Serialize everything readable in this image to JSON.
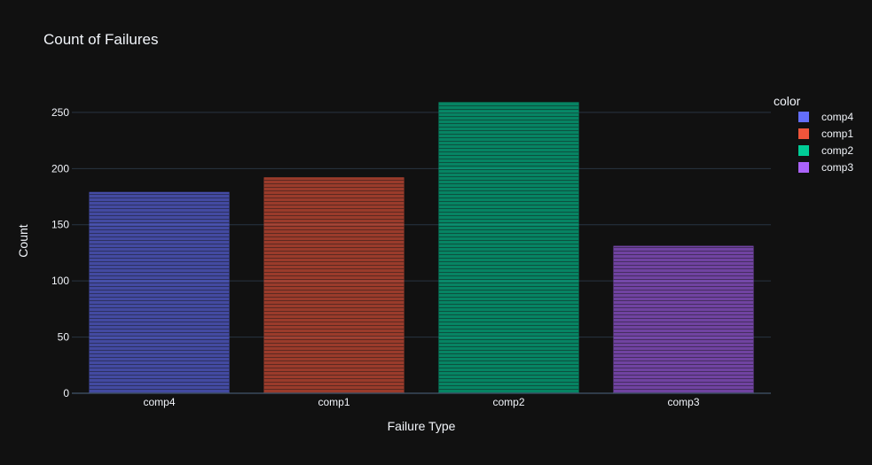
{
  "chart_data": {
    "type": "bar",
    "title": "Count of Failures",
    "xlabel": "Failure Type",
    "ylabel": "Count",
    "categories": [
      "comp4",
      "comp1",
      "comp2",
      "comp3"
    ],
    "values": [
      179,
      192,
      259,
      131
    ],
    "ylim": [
      0,
      272
    ],
    "yticks": [
      0,
      50,
      100,
      150,
      200,
      250
    ],
    "grid": true,
    "legend": {
      "title": "color",
      "position": "top-right",
      "entries": [
        "comp4",
        "comp1",
        "comp2",
        "comp3"
      ]
    },
    "colors": [
      "#636efa",
      "#EF553B",
      "#00cc96",
      "#ab63fa"
    ],
    "background": "#111111",
    "bar_pattern": "horizontal-lines"
  }
}
